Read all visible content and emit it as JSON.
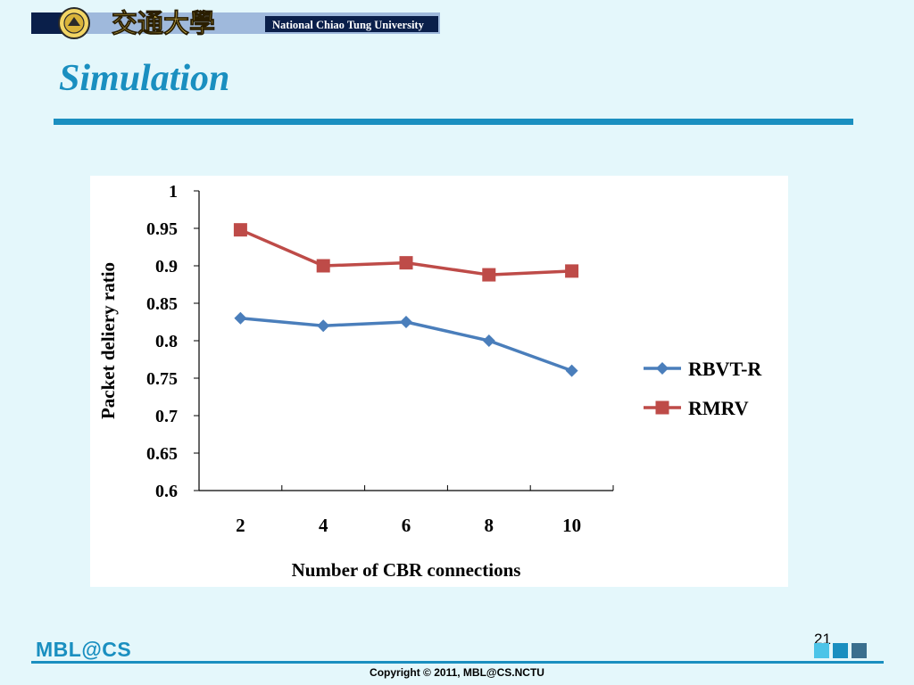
{
  "header": {
    "chinese_name": "交通大學",
    "english_name": "National Chiao Tung University"
  },
  "slide": {
    "title": "Simulation",
    "page_number": "21"
  },
  "footer": {
    "logo_text": "MBL@CS",
    "copyright": "Copyright © 2011, MBL@CS.NCTU"
  },
  "colors": {
    "accent": "#1a8fc0",
    "background": "#e4f7fb"
  },
  "chart_data": {
    "type": "line",
    "title": "",
    "xlabel": "Number of CBR connections",
    "ylabel": "Packet deliery ratio",
    "categories": [
      "2",
      "4",
      "6",
      "8",
      "10"
    ],
    "ylim": [
      0.6,
      1
    ],
    "yticks": [
      "0.6",
      "0.65",
      "0.7",
      "0.75",
      "0.8",
      "0.85",
      "0.9",
      "0.95",
      "1"
    ],
    "legend_position": "right",
    "series": [
      {
        "name": "RBVT-R",
        "values": [
          0.83,
          0.82,
          0.825,
          0.8,
          0.76
        ],
        "color": "#4a7ebb",
        "marker": "diamond"
      },
      {
        "name": "RMRV",
        "values": [
          0.948,
          0.9,
          0.904,
          0.888,
          0.893
        ],
        "color": "#be4b48",
        "marker": "square"
      }
    ]
  }
}
